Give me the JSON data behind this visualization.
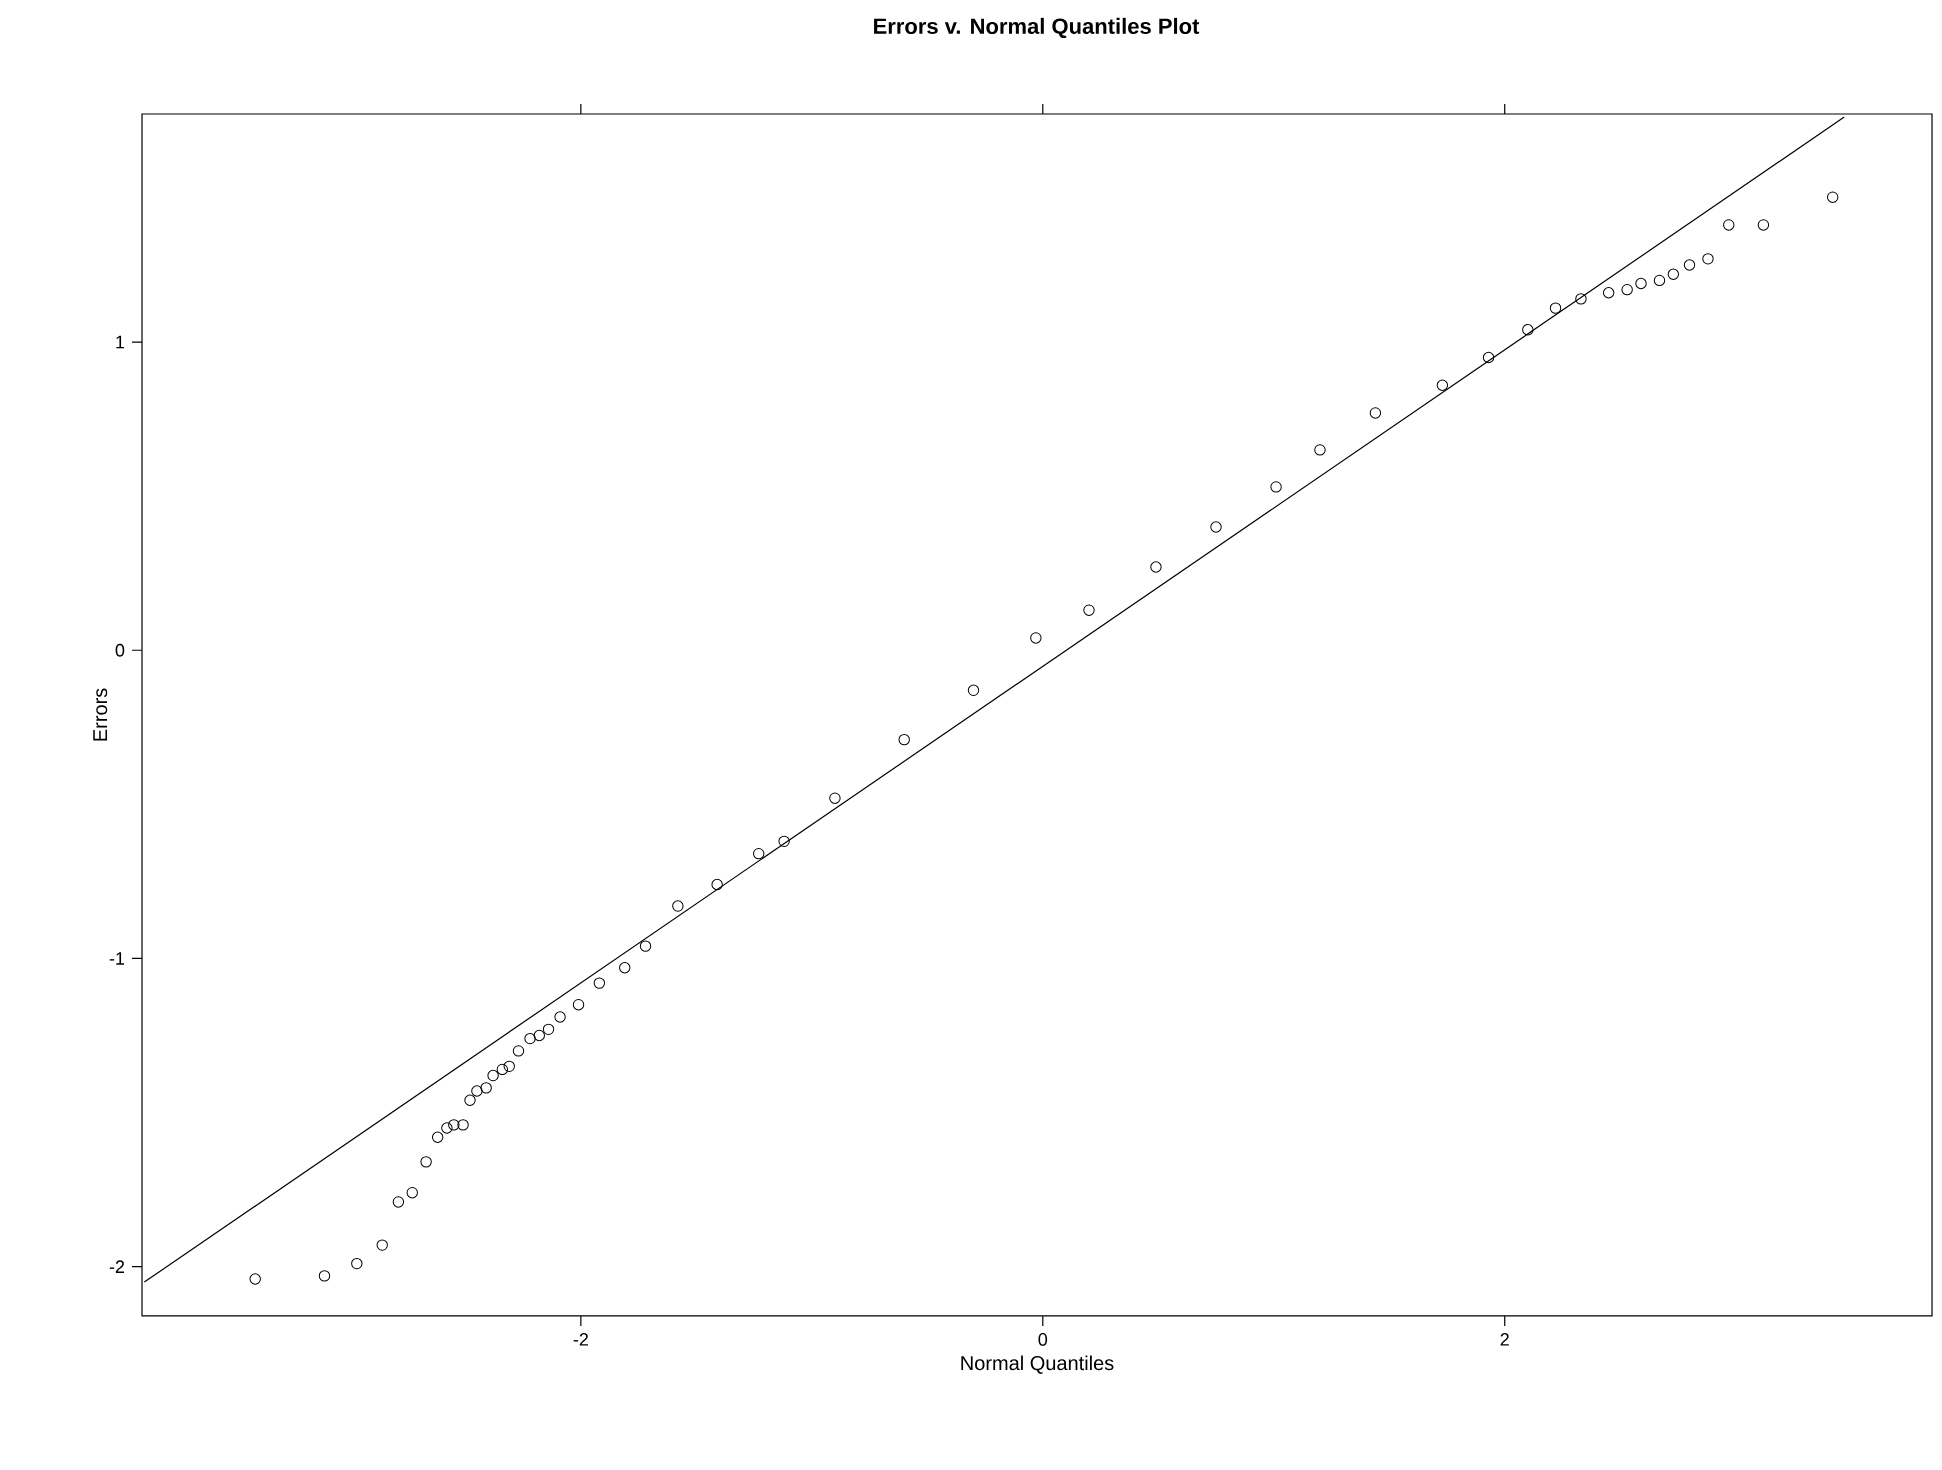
{
  "chart_data": {
    "type": "scatter",
    "title": "Errors v. Normal Quantiles Plot",
    "xlabel": "Normal Quantiles",
    "ylabel": "Errors",
    "xlim": [
      -3.9,
      3.85
    ],
    "ylim": [
      -2.16,
      1.74
    ],
    "xticks": [
      -2,
      0,
      2
    ],
    "yticks": [
      -2,
      -1,
      0,
      1
    ],
    "line_style": "solid",
    "series": [
      {
        "color": "#000000",
        "marker": "circle",
        "x": [
          -3.41,
          -3.11,
          -2.97,
          -2.86,
          -2.79,
          -2.73,
          -2.67,
          -2.62,
          -2.58,
          -2.55,
          -2.51,
          -2.48,
          -2.45,
          -2.41,
          -2.38,
          -2.34,
          -2.31,
          -2.27,
          -2.22,
          -2.18,
          -2.14,
          -2.09,
          -2.01,
          -1.92,
          -1.81,
          -1.72,
          -1.58,
          -1.41,
          -1.23,
          -1.12,
          -0.9,
          -0.6,
          -0.3,
          -0.03,
          0.2,
          0.49,
          0.75,
          1.01,
          1.2,
          1.44,
          1.73,
          1.93,
          2.1,
          2.22,
          2.33,
          2.45,
          2.53,
          2.59,
          2.67,
          2.73,
          2.8,
          2.88,
          2.97,
          3.12,
          3.42
        ],
        "values": [
          -2.04,
          -2.03,
          -1.99,
          -1.93,
          -1.79,
          -1.76,
          -1.66,
          -1.58,
          -1.55,
          -1.54,
          -1.54,
          -1.46,
          -1.43,
          -1.42,
          -1.38,
          -1.36,
          -1.35,
          -1.3,
          -1.26,
          -1.25,
          -1.23,
          -1.19,
          -1.15,
          -1.08,
          -1.03,
          -0.96,
          -0.83,
          -0.76,
          -0.66,
          -0.62,
          -0.48,
          -0.29,
          -0.13,
          0.04,
          0.13,
          0.27,
          0.4,
          0.53,
          0.65,
          0.77,
          0.86,
          0.95,
          1.04,
          1.11,
          1.14,
          1.16,
          1.17,
          1.19,
          1.2,
          1.22,
          1.25,
          1.27,
          1.38,
          1.38,
          1.47
        ]
      },
      {
        "type": "line",
        "color": "#000000",
        "marker": "none",
        "x": [
          -3.89,
          3.47
        ],
        "values": [
          -2.05,
          1.73
        ]
      }
    ]
  }
}
